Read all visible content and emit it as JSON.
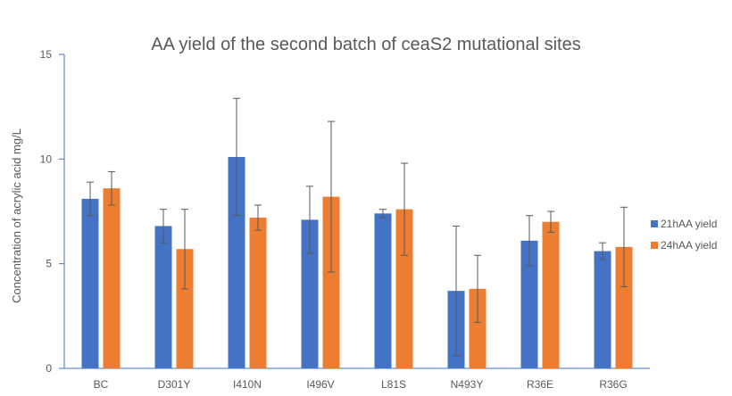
{
  "chart_data": {
    "type": "bar",
    "title": "AA yield of the second batch of ceaS2 mutational sites",
    "xlabel": "",
    "ylabel": "Concentration of acrylic acid mg/L",
    "ylim": [
      0,
      15
    ],
    "yticks": [
      0,
      5,
      10,
      15
    ],
    "grid": false,
    "legend_position": "right",
    "categories": [
      "BC",
      "D301Y",
      "I410N",
      "I496V",
      "L81S",
      "N493Y",
      "R36E",
      "R36G"
    ],
    "series": [
      {
        "name": "21hAA yield",
        "color": "#4472c4",
        "values": [
          8.1,
          6.8,
          10.1,
          7.1,
          7.4,
          3.7,
          6.1,
          5.6
        ],
        "errors": [
          0.8,
          0.8,
          2.8,
          1.6,
          0.2,
          3.1,
          1.2,
          0.4
        ]
      },
      {
        "name": "24hAA yield",
        "color": "#ed7d31",
        "values": [
          8.6,
          5.7,
          7.2,
          8.2,
          7.6,
          3.8,
          7.0,
          5.8
        ],
        "errors": [
          0.8,
          1.9,
          0.6,
          3.6,
          2.2,
          1.6,
          0.5,
          1.9
        ]
      }
    ]
  }
}
